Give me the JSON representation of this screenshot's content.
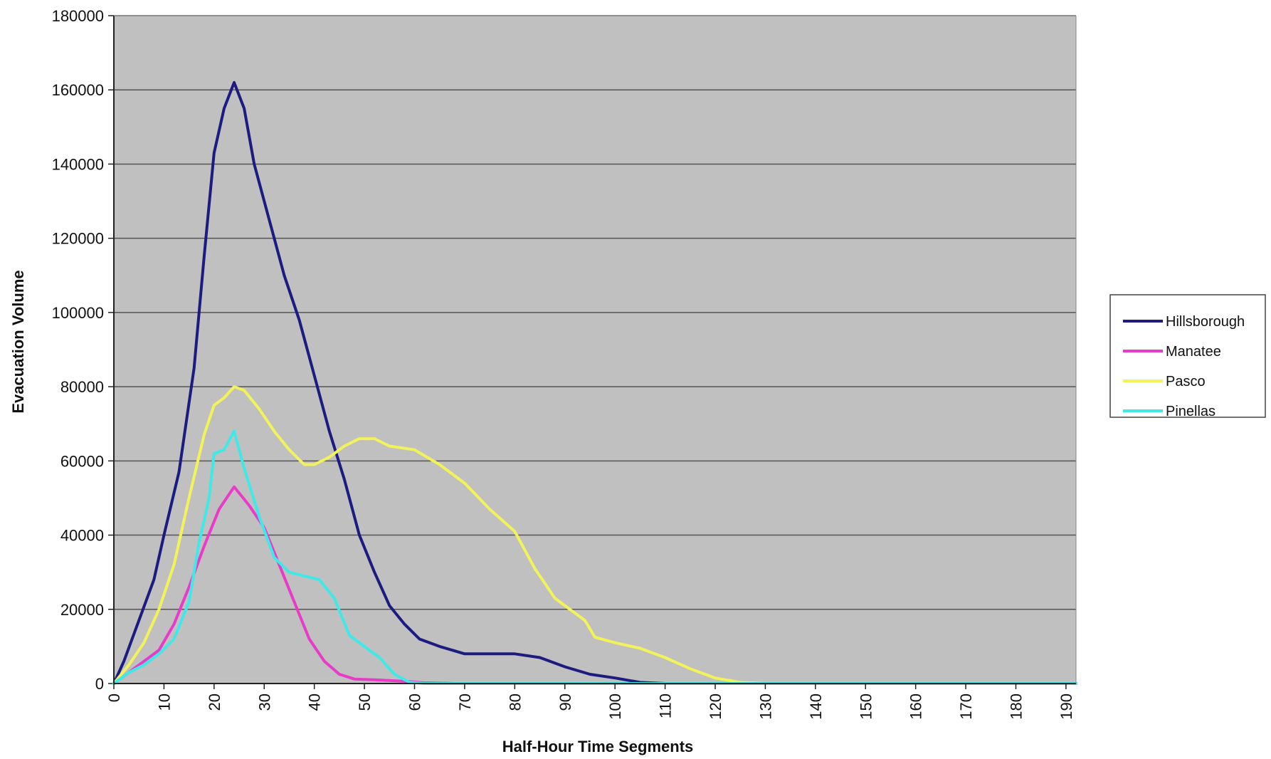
{
  "chart_data": {
    "type": "line",
    "title": "",
    "xlabel": "Half-Hour Time Segments",
    "ylabel": "Evacuation Volume",
    "xlim": [
      0,
      192
    ],
    "ylim": [
      0,
      180000
    ],
    "x_ticks": [
      "0",
      "10",
      "20",
      "30",
      "40",
      "50",
      "60",
      "70",
      "80",
      "90",
      "100",
      "110",
      "120",
      "130",
      "140",
      "150",
      "160",
      "170",
      "180",
      "190"
    ],
    "y_ticks": [
      "0",
      "20000",
      "40000",
      "60000",
      "80000",
      "100000",
      "120000",
      "140000",
      "160000",
      "180000"
    ],
    "grid": "horizontal",
    "plot_background": "#c0c0c0",
    "legend_position": "right",
    "series": [
      {
        "name": "Hillsborough",
        "color": "#1c1c80",
        "points": [
          [
            0,
            0
          ],
          [
            2,
            6000
          ],
          [
            5,
            17000
          ],
          [
            8,
            28000
          ],
          [
            10,
            40000
          ],
          [
            13,
            57000
          ],
          [
            16,
            85000
          ],
          [
            18,
            115000
          ],
          [
            20,
            143000
          ],
          [
            22,
            155000
          ],
          [
            24,
            162000
          ],
          [
            26,
            155000
          ],
          [
            28,
            140000
          ],
          [
            31,
            125000
          ],
          [
            34,
            110000
          ],
          [
            37,
            98000
          ],
          [
            40,
            83000
          ],
          [
            43,
            68000
          ],
          [
            46,
            55000
          ],
          [
            49,
            40000
          ],
          [
            52,
            30000
          ],
          [
            55,
            21000
          ],
          [
            58,
            16000
          ],
          [
            61,
            12000
          ],
          [
            65,
            10000
          ],
          [
            70,
            8000
          ],
          [
            75,
            8000
          ],
          [
            80,
            8000
          ],
          [
            85,
            7000
          ],
          [
            90,
            4500
          ],
          [
            95,
            2500
          ],
          [
            100,
            1500
          ],
          [
            105,
            300
          ],
          [
            110,
            0
          ],
          [
            192,
            0
          ]
        ]
      },
      {
        "name": "Manatee",
        "color": "#e83cc8",
        "points": [
          [
            0,
            0
          ],
          [
            3,
            3000
          ],
          [
            6,
            6000
          ],
          [
            9,
            9000
          ],
          [
            12,
            16000
          ],
          [
            15,
            26000
          ],
          [
            18,
            37000
          ],
          [
            21,
            47000
          ],
          [
            24,
            53000
          ],
          [
            27,
            48000
          ],
          [
            30,
            42000
          ],
          [
            33,
            32000
          ],
          [
            36,
            22000
          ],
          [
            39,
            12000
          ],
          [
            42,
            6000
          ],
          [
            45,
            2500
          ],
          [
            48,
            1200
          ],
          [
            52,
            1000
          ],
          [
            58,
            600
          ],
          [
            62,
            200
          ],
          [
            68,
            0
          ],
          [
            192,
            0
          ]
        ]
      },
      {
        "name": "Pasco",
        "color": "#f2f25a",
        "points": [
          [
            0,
            0
          ],
          [
            3,
            5000
          ],
          [
            6,
            11000
          ],
          [
            9,
            20000
          ],
          [
            12,
            32000
          ],
          [
            15,
            50000
          ],
          [
            18,
            67000
          ],
          [
            20,
            75000
          ],
          [
            22,
            77000
          ],
          [
            24,
            80000
          ],
          [
            26,
            79000
          ],
          [
            29,
            74000
          ],
          [
            32,
            68000
          ],
          [
            35,
            63000
          ],
          [
            38,
            59000
          ],
          [
            40,
            59000
          ],
          [
            43,
            61000
          ],
          [
            46,
            64000
          ],
          [
            49,
            66000
          ],
          [
            52,
            66000
          ],
          [
            55,
            64000
          ],
          [
            60,
            63000
          ],
          [
            65,
            59000
          ],
          [
            70,
            54000
          ],
          [
            75,
            47000
          ],
          [
            80,
            41000
          ],
          [
            84,
            31000
          ],
          [
            88,
            23000
          ],
          [
            91,
            20000
          ],
          [
            94,
            17000
          ],
          [
            96,
            12500
          ],
          [
            100,
            11000
          ],
          [
            105,
            9500
          ],
          [
            110,
            7000
          ],
          [
            115,
            4000
          ],
          [
            120,
            1500
          ],
          [
            125,
            300
          ],
          [
            130,
            0
          ],
          [
            192,
            0
          ]
        ]
      },
      {
        "name": "Pinellas",
        "color": "#40e8e8",
        "points": [
          [
            0,
            0
          ],
          [
            3,
            3000
          ],
          [
            6,
            5000
          ],
          [
            9,
            8000
          ],
          [
            12,
            12000
          ],
          [
            15,
            22000
          ],
          [
            17,
            38000
          ],
          [
            19,
            50000
          ],
          [
            20,
            62000
          ],
          [
            22,
            63000
          ],
          [
            24,
            68000
          ],
          [
            26,
            58000
          ],
          [
            29,
            45000
          ],
          [
            32,
            34000
          ],
          [
            35,
            30000
          ],
          [
            38,
            29000
          ],
          [
            41,
            28000
          ],
          [
            44,
            23000
          ],
          [
            47,
            13000
          ],
          [
            50,
            10000
          ],
          [
            53,
            7000
          ],
          [
            56,
            2500
          ],
          [
            59,
            300
          ],
          [
            62,
            0
          ],
          [
            192,
            0
          ]
        ]
      }
    ]
  }
}
